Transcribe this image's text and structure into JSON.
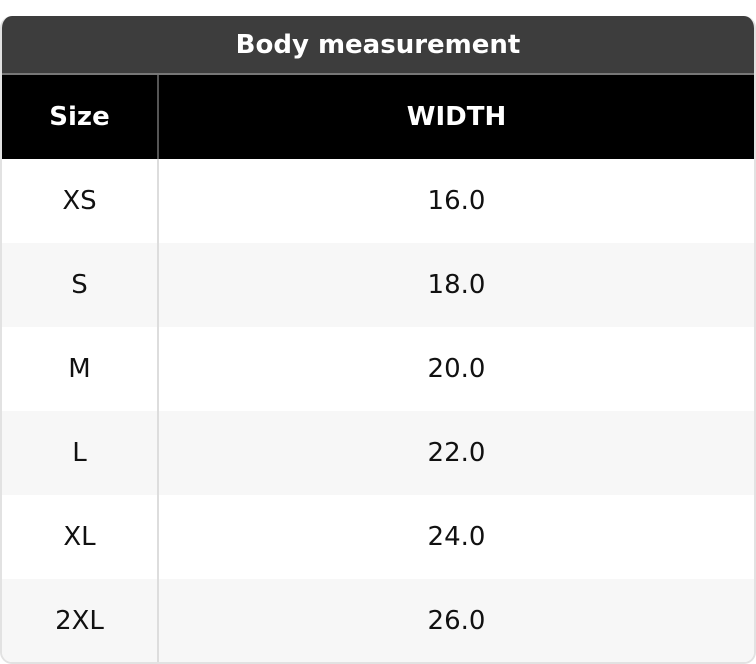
{
  "title": "Body measurement",
  "headers": [
    "Size",
    "WIDTH"
  ],
  "rows": [
    [
      "XS",
      "16.0"
    ],
    [
      "S",
      "18.0"
    ],
    [
      "M",
      "20.0"
    ],
    [
      "L",
      "22.0"
    ],
    [
      "XL",
      "24.0"
    ],
    [
      "2XL",
      "26.0"
    ]
  ]
}
